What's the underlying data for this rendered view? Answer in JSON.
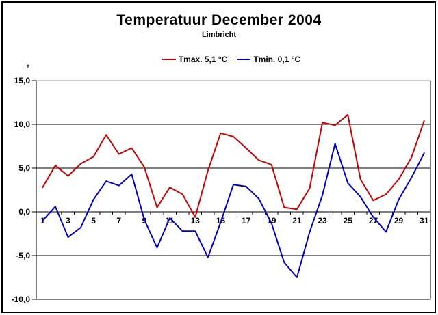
{
  "chart_data": {
    "type": "line",
    "title": "Temperatuur December 2004",
    "subtitle": "Limbricht",
    "unit_symbol": "°",
    "x": [
      1,
      2,
      3,
      4,
      5,
      6,
      7,
      8,
      9,
      10,
      11,
      12,
      13,
      14,
      15,
      16,
      17,
      18,
      19,
      20,
      21,
      22,
      23,
      24,
      25,
      26,
      27,
      28,
      29,
      30,
      31
    ],
    "xtick_labels": [
      "1",
      "3",
      "5",
      "7",
      "9",
      "11",
      "13",
      "15",
      "17",
      "19",
      "21",
      "23",
      "25",
      "27",
      "29",
      "31"
    ],
    "xtick_values": [
      1,
      3,
      5,
      7,
      9,
      11,
      13,
      15,
      17,
      19,
      21,
      23,
      25,
      27,
      29,
      31
    ],
    "ytick_values": [
      15,
      10,
      5,
      0,
      -5,
      -10
    ],
    "ytick_labels": [
      "15,0",
      "10,0",
      "5,0",
      "0,0",
      "-5,0",
      "-10,0"
    ],
    "ylim": [
      -10,
      15
    ],
    "grid": true,
    "legend_position": "top-center",
    "series": [
      {
        "name": "Tmax. 5,1 °C",
        "color": "#cc0000",
        "values": [
          2.8,
          5.3,
          4.1,
          5.5,
          6.3,
          8.8,
          6.6,
          7.3,
          5.1,
          0.5,
          2.8,
          2.0,
          -0.6,
          4.7,
          9.0,
          8.6,
          7.3,
          5.9,
          5.4,
          0.5,
          0.3,
          2.7,
          10.2,
          9.9,
          11.1,
          3.7,
          1.3,
          2.0,
          3.7,
          6.2,
          10.4
        ]
      },
      {
        "name": "Tmin. 0,1 °C",
        "color": "#0000cc",
        "values": [
          -1.0,
          0.6,
          -2.9,
          -1.8,
          1.4,
          3.5,
          3.0,
          4.3,
          -0.9,
          -4.1,
          -0.7,
          -2.2,
          -2.2,
          -5.2,
          -1.2,
          3.1,
          2.9,
          1.5,
          -1.3,
          -5.8,
          -7.5,
          -2.3,
          1.9,
          7.8,
          3.3,
          1.7,
          -0.6,
          -2.3,
          1.4,
          3.9,
          6.7
        ]
      }
    ],
    "axis_color": "#000000",
    "plot_top_border_color": "#999999"
  }
}
